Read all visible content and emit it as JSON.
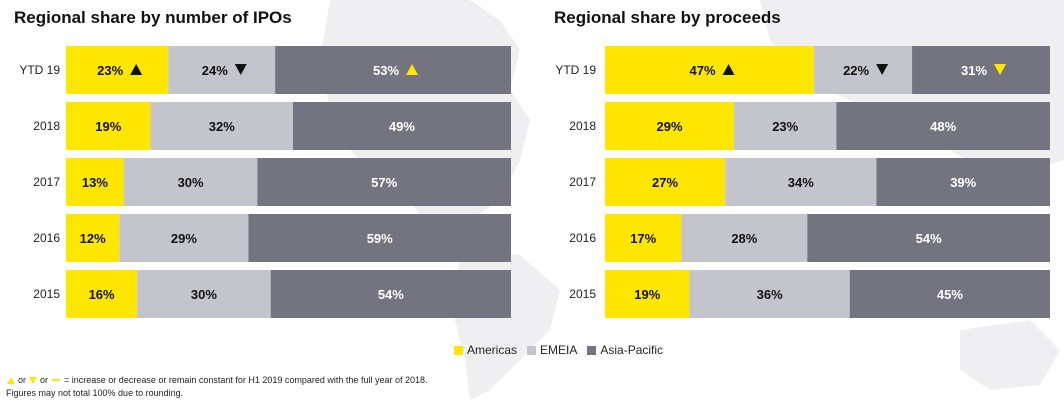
{
  "colors": {
    "americas": "#ffe600",
    "emeia": "#c4c4cd",
    "asia_pacific": "#747480",
    "text_dark": "#111111",
    "text_light": "#ffffff",
    "up_black": "#111111"
  },
  "legend": {
    "americas": "Americas",
    "emeia": "EMEIA",
    "asia_pacific": "Asia-Pacific"
  },
  "footnote": {
    "line1_or1": "or",
    "line1_or2": "or",
    "line1_text": "= increase or decrease or remain constant for H1 2019 compared with the full year of 2018.",
    "line2": "Figures may not total 100% due to rounding."
  },
  "chart_data": [
    {
      "type": "bar",
      "orientation": "horizontal-stacked",
      "title": "Regional share by number of IPOs",
      "categories": [
        "YTD 19",
        "2018",
        "2017",
        "2016",
        "2015"
      ],
      "series": [
        {
          "name": "Americas",
          "values": [
            23,
            19,
            13,
            12,
            16
          ],
          "labels": [
            "23%",
            "19%",
            "13%",
            "12%",
            "16%"
          ]
        },
        {
          "name": "EMEIA",
          "values": [
            24,
            32,
            30,
            29,
            30
          ],
          "labels": [
            "24%",
            "32%",
            "30%",
            "29%",
            "30%"
          ]
        },
        {
          "name": "Asia-Pacific",
          "values": [
            53,
            49,
            57,
            59,
            54
          ],
          "labels": [
            "53%",
            "49%",
            "57%",
            "59%",
            "54%"
          ]
        }
      ],
      "trend_ytd": [
        "up",
        "down",
        "up"
      ],
      "trend_color": [
        "black",
        "black",
        "yellow"
      ],
      "xlim": [
        0,
        100
      ]
    },
    {
      "type": "bar",
      "orientation": "horizontal-stacked",
      "title": "Regional share by proceeds",
      "categories": [
        "YTD 19",
        "2018",
        "2017",
        "2016",
        "2015"
      ],
      "series": [
        {
          "name": "Americas",
          "values": [
            47,
            29,
            27,
            17,
            19
          ],
          "labels": [
            "47%",
            "29%",
            "27%",
            "17%",
            "19%"
          ]
        },
        {
          "name": "EMEIA",
          "values": [
            22,
            23,
            34,
            28,
            36
          ],
          "labels": [
            "22%",
            "23%",
            "34%",
            "28%",
            "36%"
          ]
        },
        {
          "name": "Asia-Pacific",
          "values": [
            31,
            48,
            39,
            54,
            45
          ],
          "labels": [
            "31%",
            "48%",
            "39%",
            "54%",
            "45%"
          ]
        }
      ],
      "trend_ytd": [
        "up",
        "down",
        "down"
      ],
      "trend_color": [
        "black",
        "black",
        "yellow"
      ],
      "xlim": [
        0,
        100
      ]
    }
  ]
}
